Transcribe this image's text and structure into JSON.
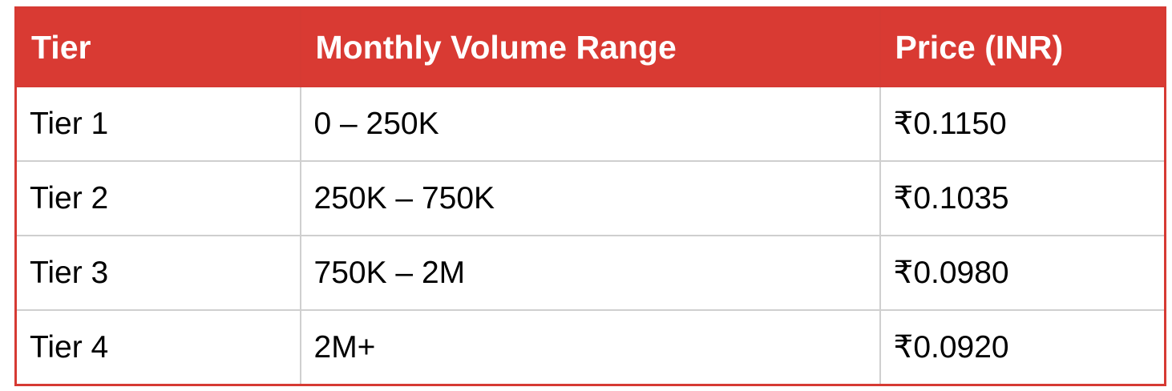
{
  "table": {
    "header": [
      "Tier",
      "Monthly Volume Range",
      "Price (INR)"
    ],
    "rows": [
      [
        "Tier 1",
        "0 – 250K",
        "₹0.1150"
      ],
      [
        "Tier 2",
        "250K – 750K",
        "₹0.1035"
      ],
      [
        "Tier 3",
        "750K – 2M",
        "₹0.0980"
      ],
      [
        "Tier 4",
        "2M+",
        "₹0.0920"
      ]
    ]
  }
}
